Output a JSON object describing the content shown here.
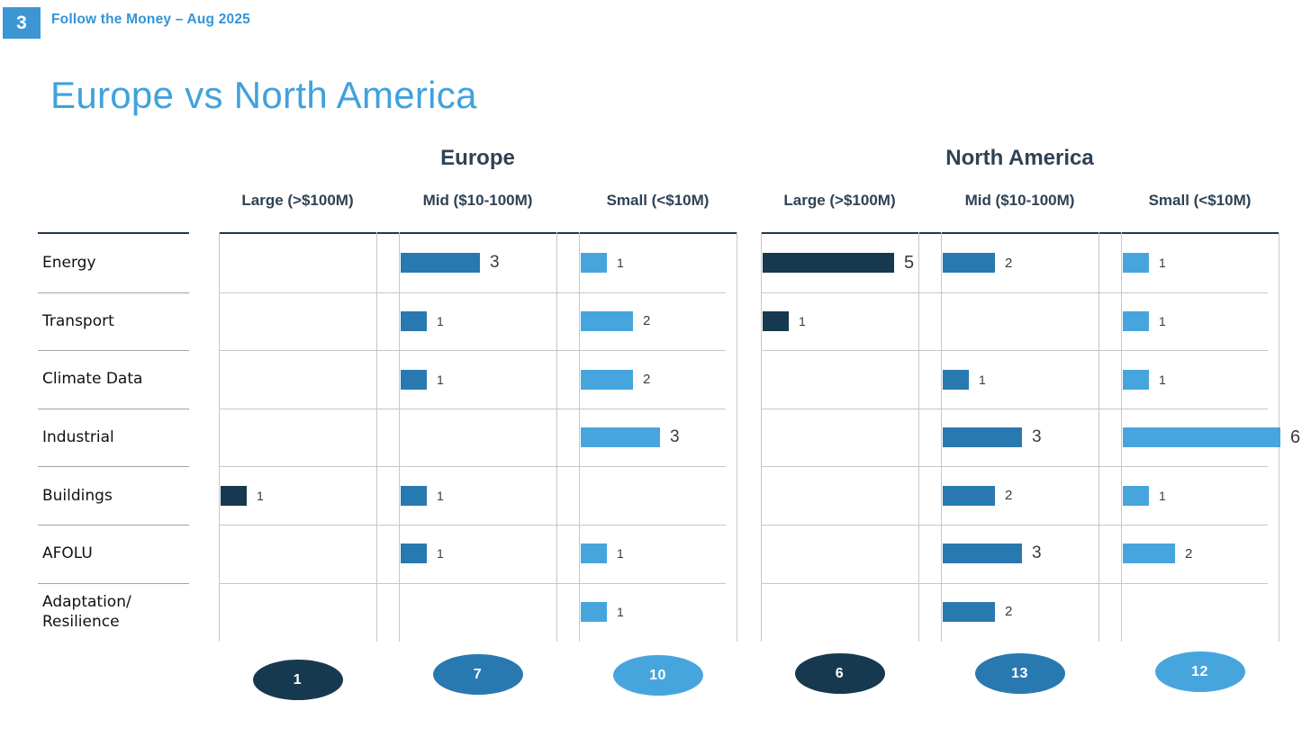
{
  "page": {
    "badge": "3",
    "header": "Follow the Money – Aug 2025",
    "title": "Europe vs North America"
  },
  "chart_data": {
    "type": "bar",
    "orientation": "horizontal",
    "title": "Europe vs North America",
    "value_axis_max": 6,
    "grid": "on",
    "row_categories": [
      "Energy",
      "Transport",
      "Climate Data",
      "Industrial",
      "Buildings",
      "AFOLU",
      "Adaptation/\nResilience"
    ],
    "column_groups": [
      {
        "group": "Europe",
        "columns": [
          {
            "label": "Large (>$100M)",
            "size": "large",
            "values": [
              null,
              null,
              null,
              null,
              1,
              null,
              null
            ],
            "total": 1
          },
          {
            "label": "Mid ($10-100M)",
            "size": "mid",
            "values": [
              3,
              1,
              1,
              null,
              1,
              1,
              null
            ],
            "total": 7
          },
          {
            "label": "Small (<$10M)",
            "size": "small",
            "values": [
              1,
              2,
              2,
              3,
              null,
              1,
              1
            ],
            "total": 10
          }
        ]
      },
      {
        "group": "North America",
        "columns": [
          {
            "label": "Large (>$100M)",
            "size": "large",
            "values": [
              5,
              1,
              null,
              null,
              null,
              null,
              null
            ],
            "total": 6
          },
          {
            "label": "Mid ($10-100M)",
            "size": "mid",
            "values": [
              2,
              null,
              1,
              3,
              2,
              3,
              2
            ],
            "total": 13
          },
          {
            "label": "Small (<$10M)",
            "size": "small",
            "values": [
              1,
              1,
              1,
              6,
              1,
              2,
              null
            ],
            "total": 12
          }
        ]
      }
    ],
    "colors": {
      "large": "#17394F",
      "mid": "#2979B1",
      "small": "#47A5DE",
      "accent_blue": "#3C96D3",
      "title_blue": "#41A1DC",
      "header_slate": "#2F4254"
    }
  }
}
